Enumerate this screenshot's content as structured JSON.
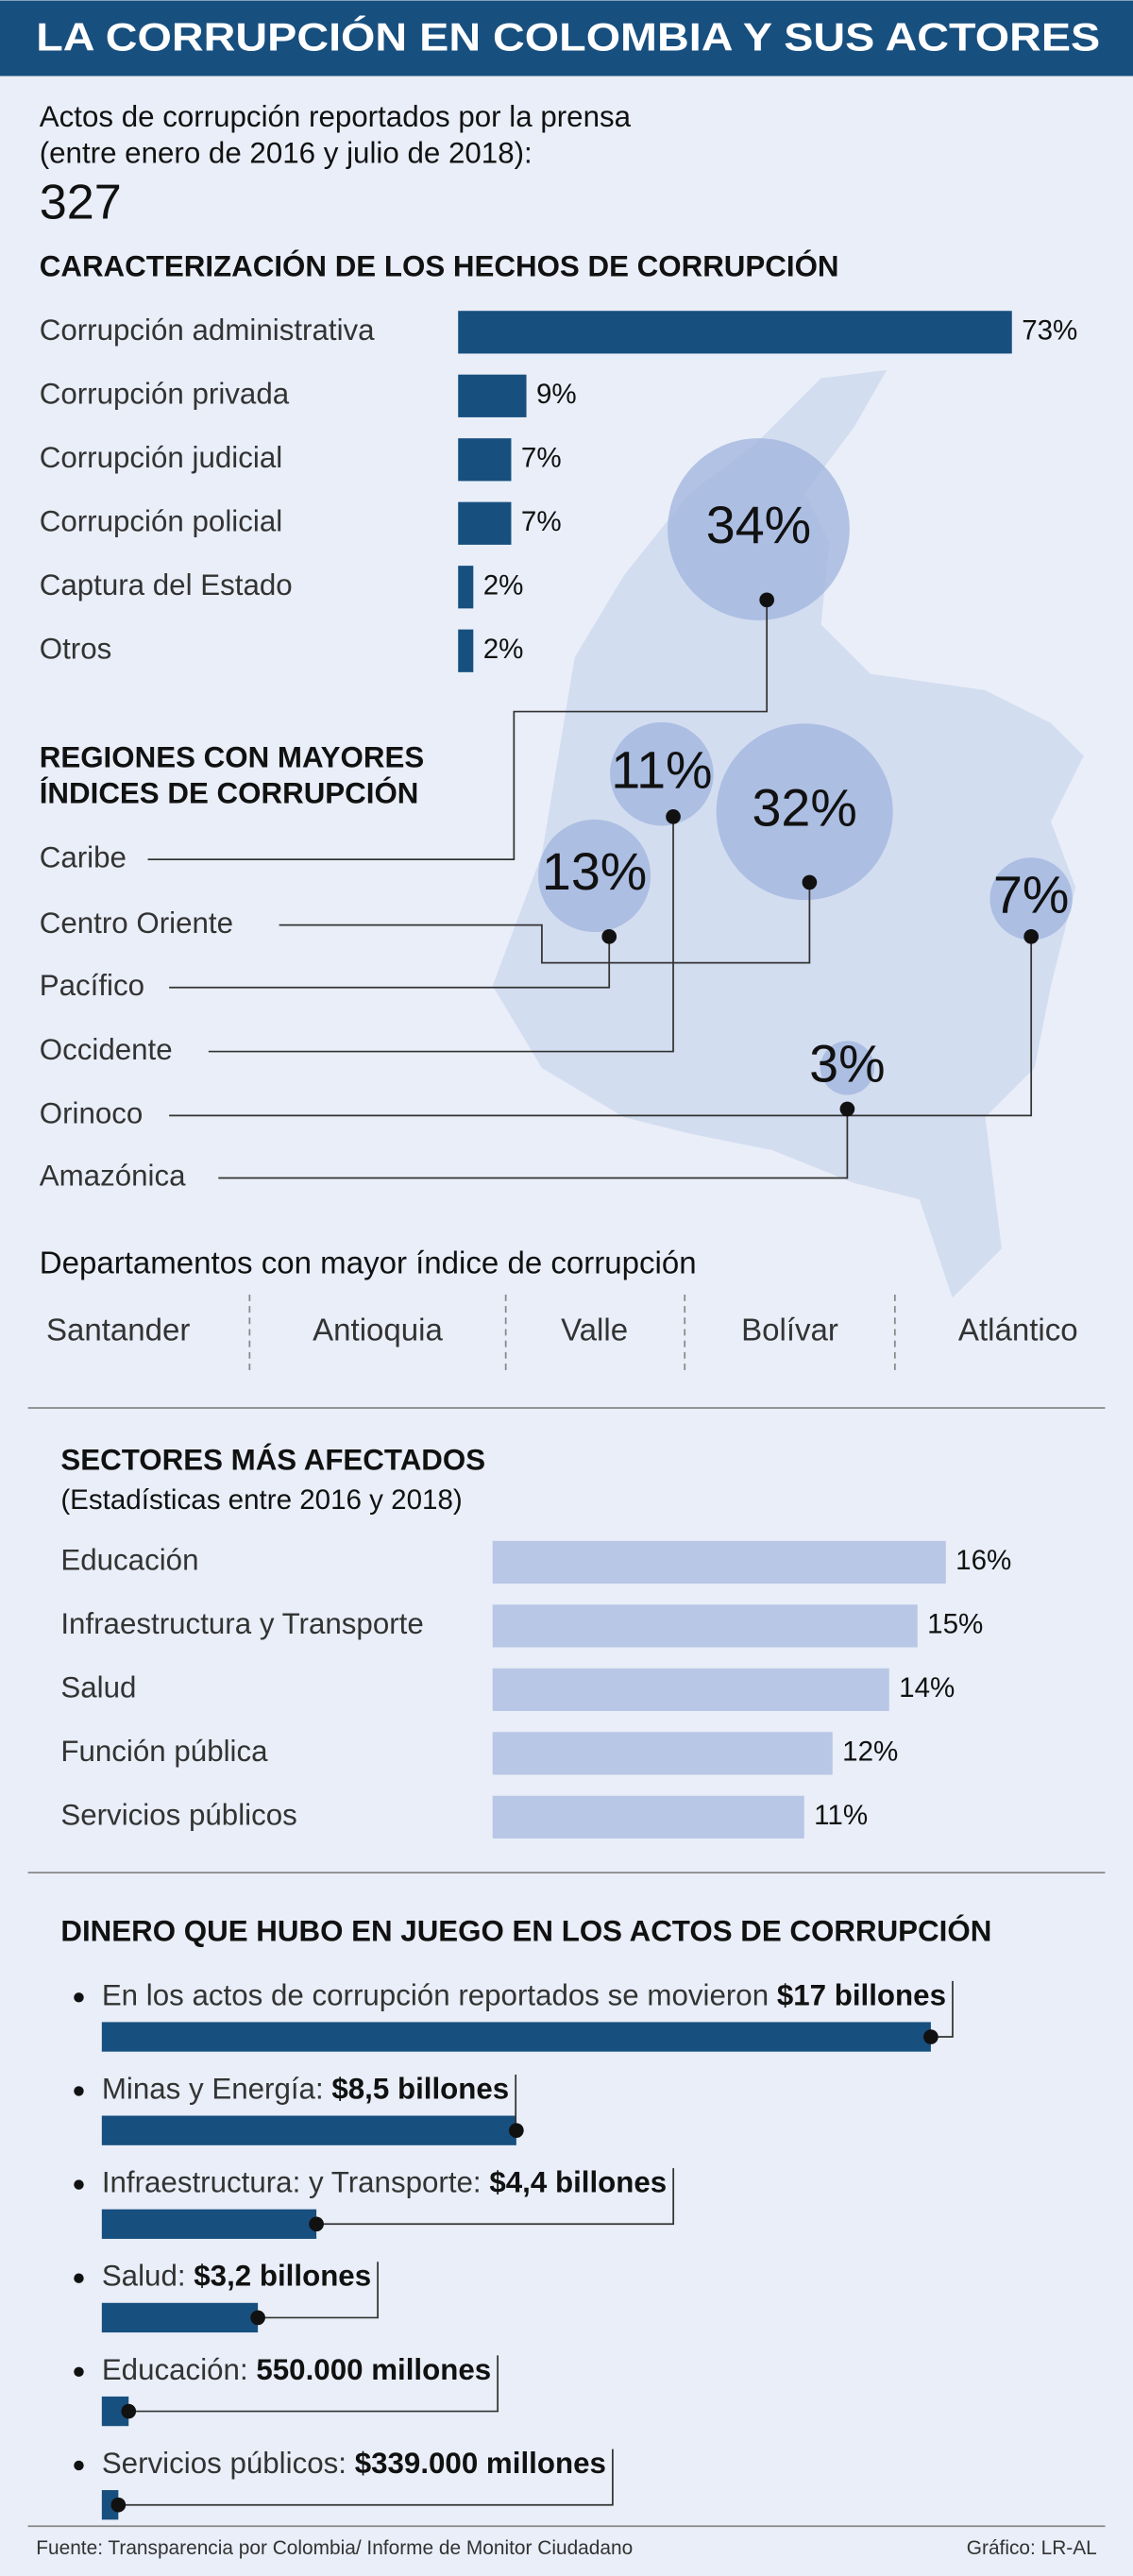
{
  "title": "LA CORRUPCIÓN  EN COLOMBIA Y SUS ACTORES",
  "intro": {
    "lines": [
      "Actos de corrupción reportados por la prensa",
      "(entre enero de 2016 y julio de 2018):"
    ],
    "total": 327
  },
  "chart_data": [
    {
      "type": "bar",
      "title": "CARACTERIZACIÓN DE LOS HECHOS DE CORRUPCIÓN",
      "categories": [
        "Corrupción administrativa",
        "Corrupción privada",
        "Corrupción judicial",
        "Corrupción policial",
        "Captura del Estado",
        "Otros"
      ],
      "values": [
        73,
        9,
        7,
        7,
        2,
        2
      ],
      "value_labels": [
        "73%",
        "9%",
        "7%",
        "7%",
        "2%",
        "2%"
      ],
      "color": "#174f7f"
    },
    {
      "type": "bubble",
      "title_lines": [
        "REGIONES CON MAYORES",
        "ÍNDICES DE CORRUPCIÓN"
      ],
      "categories": [
        "Caribe",
        "Centro Oriente",
        "Pacífico",
        "Occidente",
        "Orinoco",
        "Amazónica"
      ],
      "values": [
        34,
        32,
        13,
        11,
        7,
        3
      ],
      "value_labels": [
        "34%",
        "32%",
        "13%",
        "11%",
        "7%",
        "3%"
      ],
      "color": "#9fb3de"
    },
    {
      "type": "bar",
      "title": "SECTORES MÁS AFECTADOS",
      "subtitle": "(Estadísticas entre 2016 y 2018)",
      "categories": [
        "Educación",
        "Infraestructura y Transporte",
        "Salud",
        "Función pública",
        "Servicios públicos"
      ],
      "values": [
        16,
        15,
        14,
        12,
        11
      ],
      "value_labels": [
        "16%",
        "15%",
        "14%",
        "12%",
        "11%"
      ],
      "color": "#b9c7e6"
    },
    {
      "type": "bar",
      "title": "DINERO QUE HUBO EN JUEGO EN LOS ACTOS DE CORRUPCIÓN",
      "categories": [
        "En los actos de corrupción reportados se movieron",
        "Minas y Energía:",
        "Infraestructura: y Transporte:",
        "Salud:",
        "Educación:",
        "Servicios públicos:"
      ],
      "values": [
        17,
        8.5,
        4.4,
        3.2,
        0.55,
        0.339
      ],
      "value_labels": [
        "$17 billones",
        "$8,5 billones",
        "$4,4 billones",
        "$3,2 billones",
        "550.000 millones",
        "$339.000 millones"
      ],
      "color": "#174f7f"
    }
  ],
  "departments": {
    "title": "Departamentos con mayor índice de corrupción",
    "items": [
      "Santander",
      "Antioquia",
      "Valle",
      "Bolívar",
      "Atlántico"
    ]
  },
  "footer": {
    "source": "Fuente: Transparencia por Colombia/ Informe de Monitor Ciudadano",
    "credit": "Gráfico: LR-AL"
  }
}
